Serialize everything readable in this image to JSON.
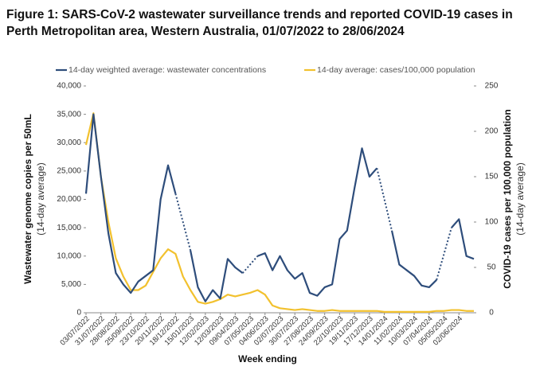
{
  "chart_data": {
    "type": "line",
    "title": "Figure 1: SARS-CoV-2 wastewater surveillance trends and reported COVID-19 cases in Perth Metropolitan area, Western Australia, 01/07/2022 to 28/06/2024",
    "x_label": "Week ending",
    "y_label": "Wastewater genome copies per 50mL",
    "y_sublabel": "(14-day average)",
    "y2_label": "COVID-19 cases per 100,000 population",
    "y2_sublabel": "(14-day average)",
    "categories": [
      "03/07/2022",
      null,
      "31/07/2022",
      null,
      "28/08/2022",
      null,
      "25/09/2022",
      null,
      "23/10/2022",
      null,
      "20/11/2022",
      null,
      "18/12/2022",
      null,
      "15/01/2023",
      null,
      "12/02/2023",
      null,
      "12/03/2023",
      null,
      "09/04/2023",
      null,
      "07/05/2023",
      null,
      "04/06/2023",
      null,
      "02/07/2023",
      null,
      "30/07/2023",
      null,
      "27/08/2023",
      null,
      "24/09/2023",
      null,
      "22/10/2023",
      null,
      "19/11/2023",
      null,
      "17/12/2023",
      null,
      "14/01/2024",
      null,
      "11/02/2024",
      null,
      "10/03/2024",
      null,
      "07/04/2024",
      null,
      "05/05/2024",
      null,
      "02/06/2024",
      null,
      null
    ],
    "series": [
      {
        "name": "14-day weighted average: wastewater concentrations",
        "color": "#2e4d7b",
        "axis": "y",
        "values": [
          21000,
          35000,
          24000,
          14000,
          7000,
          5000,
          3500,
          5500,
          6500,
          7500,
          20000,
          26000,
          21000,
          null,
          11000,
          4500,
          2000,
          4000,
          2500,
          9500,
          8000,
          7000,
          null,
          10000,
          10500,
          7500,
          10000,
          7500,
          6000,
          7000,
          3500,
          3000,
          4500,
          5000,
          13000,
          14500,
          22000,
          29000,
          24000,
          25500,
          null,
          14500,
          8500,
          7500,
          6500,
          4800,
          4500,
          5800,
          null,
          15000,
          16500,
          10000,
          9500
        ]
      },
      {
        "name": "14-day average: cases/100,000 population",
        "color": "#f2c12e",
        "axis": "y2",
        "values": [
          185,
          220,
          150,
          100,
          60,
          40,
          25,
          25,
          30,
          45,
          60,
          70,
          65,
          40,
          25,
          12,
          10,
          12,
          15,
          20,
          18,
          20,
          22,
          25,
          20,
          8,
          5,
          4,
          3,
          4,
          3,
          2,
          2,
          3,
          2,
          2,
          2,
          2,
          2,
          2,
          1,
          1,
          1,
          1,
          1,
          1,
          1,
          2,
          2,
          3,
          3,
          2,
          2
        ]
      }
    ],
    "gap_style": "dotted",
    "ylim": [
      0,
      40000
    ],
    "yticks": [
      0,
      {
        "value": 5000,
        "label": "5,000"
      },
      {
        "value": 10000,
        "label": "10,000"
      },
      {
        "value": 15000,
        "label": "15,000"
      },
      {
        "value": 20000,
        "label": "20,000"
      },
      {
        "value": 25000,
        "label": "25,000"
      },
      {
        "value": 30000,
        "label": "30,000"
      },
      {
        "value": 35000,
        "label": "35,000"
      },
      {
        "value": 40000,
        "label": "40,000"
      }
    ],
    "y2lim": [
      0,
      250
    ],
    "y2ticks": [
      0,
      50,
      100,
      150,
      200,
      250
    ],
    "legend": "top"
  }
}
